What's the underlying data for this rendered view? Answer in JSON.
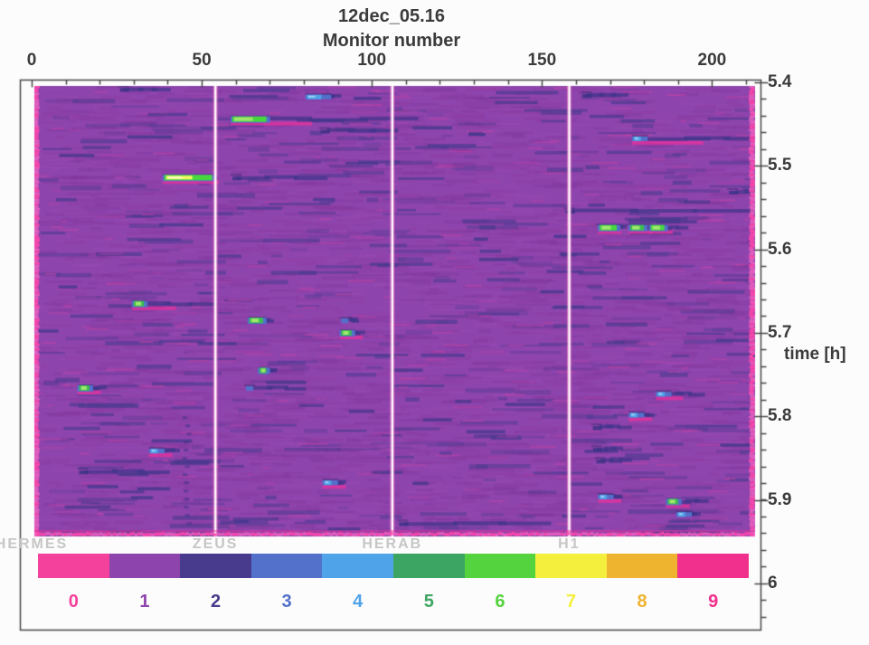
{
  "title": "12dec_05.16",
  "axes": {
    "x": {
      "label": "Monitor number",
      "major_ticks": [
        "0",
        "50",
        "100",
        "150",
        "200"
      ],
      "major_tick_values": [
        0,
        50,
        100,
        150,
        200
      ],
      "minor_tick_step": 10,
      "max_monitor": 213
    },
    "y": {
      "label": "time [h]",
      "major_ticks": [
        "5.4",
        "5.5",
        "5.6",
        "5.7",
        "5.8",
        "5.9",
        "6"
      ],
      "major_tick_values": [
        5.4,
        5.5,
        5.6,
        5.7,
        5.8,
        5.9,
        6.0
      ],
      "minor_tick_step": 0.02,
      "minor_tick_extent": 6.04
    }
  },
  "sections": [
    {
      "name": "HERMES",
      "start_monitor": 0
    },
    {
      "name": "ZEUS",
      "start_monitor": 54
    },
    {
      "name": "HERAB",
      "start_monitor": 106
    },
    {
      "name": "H1",
      "start_monitor": 158
    }
  ],
  "colorbar": {
    "values": [
      "0",
      "1",
      "2",
      "3",
      "4",
      "5",
      "6",
      "7",
      "8",
      "9"
    ],
    "colors": [
      "#f4429c",
      "#8e44ad",
      "#483a8c",
      "#5371cb",
      "#4fa3e8",
      "#3da563",
      "#55d33f",
      "#f4ef3d",
      "#eeb32f",
      "#f0308c"
    ]
  },
  "chart_data": {
    "type": "heatmap",
    "title": "12dec_05.16",
    "xlabel": "Monitor number",
    "ylabel": "time [h]",
    "x_range": [
      0,
      213
    ],
    "y_range": [
      5.4,
      5.94
    ],
    "y_axis_extent": [
      5.4,
      6.0
    ],
    "background_level": 1,
    "color_scale": {
      "values": [
        0,
        1,
        2,
        3,
        4,
        5,
        6,
        7,
        8,
        9
      ],
      "colors": [
        "#f4429c",
        "#8e44ad",
        "#483a8c",
        "#5371cb",
        "#4fa3e8",
        "#3da563",
        "#55d33f",
        "#f4ef3d",
        "#eeb32f",
        "#f0308c"
      ]
    },
    "sections": [
      {
        "name": "HERMES",
        "start_monitor": 0
      },
      {
        "name": "ZEUS",
        "start_monitor": 54
      },
      {
        "name": "HERAB",
        "start_monitor": 106
      },
      {
        "name": "H1",
        "start_monitor": 158
      }
    ],
    "section_divider_monitors": [
      54,
      106,
      158
    ],
    "events": [
      {
        "monitor": 39,
        "time": 5.513,
        "span": 14,
        "peak_level": 7,
        "tail": 5,
        "underglow": true
      },
      {
        "monitor": 59,
        "time": 5.513,
        "span": 0,
        "peak_level": 2,
        "tail": 25,
        "underglow": false
      },
      {
        "monitor": 26,
        "time": 5.407,
        "span": 0,
        "peak_level": 2,
        "tail": 12,
        "underglow": false
      },
      {
        "monitor": 59,
        "time": 5.443,
        "span": 10,
        "peak_level": 6,
        "tail": 47,
        "underglow": true
      },
      {
        "monitor": 81,
        "time": 5.416,
        "span": 6,
        "peak_level": 4,
        "tail": 4,
        "underglow": false
      },
      {
        "monitor": 85,
        "time": 5.457,
        "span": 0,
        "peak_level": 2,
        "tail": 20,
        "underglow": false
      },
      {
        "monitor": 162,
        "time": 5.414,
        "span": 0,
        "peak_level": 2,
        "tail": 10,
        "underglow": false
      },
      {
        "monitor": 177,
        "time": 5.466,
        "span": 3,
        "peak_level": 4,
        "tail": 36,
        "underglow": true
      },
      {
        "monitor": 157,
        "time": 5.553,
        "span": 0,
        "peak_level": 2,
        "tail": 54,
        "underglow": false
      },
      {
        "monitor": 167,
        "time": 5.573,
        "span": 5,
        "peak_level": 6,
        "tail": 3,
        "underglow": true
      },
      {
        "monitor": 176,
        "time": 5.573,
        "span": 4,
        "peak_level": 5,
        "tail": 2,
        "underglow": true
      },
      {
        "monitor": 182,
        "time": 5.573,
        "span": 4,
        "peak_level": 6,
        "tail": 6,
        "underglow": true
      },
      {
        "monitor": 30,
        "time": 5.664,
        "span": 3,
        "peak_level": 5,
        "tail": 20,
        "underglow": true
      },
      {
        "monitor": 64,
        "time": 5.684,
        "span": 4,
        "peak_level": 5,
        "tail": 3,
        "underglow": false
      },
      {
        "monitor": 91,
        "time": 5.684,
        "span": 2,
        "peak_level": 3,
        "tail": 2,
        "underglow": false
      },
      {
        "monitor": 91,
        "time": 5.699,
        "span": 3,
        "peak_level": 5,
        "tail": 3,
        "underglow": true
      },
      {
        "monitor": 67,
        "time": 5.744,
        "span": 2,
        "peak_level": 5,
        "tail": 2,
        "underglow": false
      },
      {
        "monitor": 14,
        "time": 5.765,
        "span": 3,
        "peak_level": 5,
        "tail": 4,
        "underglow": true
      },
      {
        "monitor": 63,
        "time": 5.765,
        "span": 0,
        "peak_level": 3,
        "tail": 14,
        "underglow": false
      },
      {
        "monitor": 184,
        "time": 5.772,
        "span": 3,
        "peak_level": 4,
        "tail": 10,
        "underglow": true
      },
      {
        "monitor": 176,
        "time": 5.797,
        "span": 3,
        "peak_level": 4,
        "tail": 3,
        "underglow": true
      },
      {
        "monitor": 165,
        "time": 5.812,
        "span": 0,
        "peak_level": 2,
        "tail": 8,
        "underglow": false
      },
      {
        "monitor": 35,
        "time": 5.84,
        "span": 3,
        "peak_level": 4,
        "tail": 5,
        "underglow": true
      },
      {
        "monitor": 165,
        "time": 5.838,
        "span": 0,
        "peak_level": 2,
        "tail": 6,
        "underglow": false
      },
      {
        "monitor": 14,
        "time": 5.865,
        "span": 0,
        "peak_level": 2,
        "tail": 24,
        "underglow": false
      },
      {
        "monitor": 166,
        "time": 5.852,
        "span": 0,
        "peak_level": 2,
        "tail": 7,
        "underglow": false
      },
      {
        "monitor": 205,
        "time": 5.53,
        "span": 0,
        "peak_level": 2,
        "tail": 8,
        "underglow": false
      },
      {
        "monitor": 86,
        "time": 5.878,
        "span": 3,
        "peak_level": 4,
        "tail": 3,
        "underglow": true
      },
      {
        "monitor": 167,
        "time": 5.895,
        "span": 3,
        "peak_level": 4,
        "tail": 3,
        "underglow": true
      },
      {
        "monitor": 187,
        "time": 5.901,
        "span": 3,
        "peak_level": 5,
        "tail": 8,
        "underglow": true
      },
      {
        "monitor": 190,
        "time": 5.916,
        "span": 3,
        "peak_level": 4,
        "tail": 3,
        "underglow": false
      },
      {
        "monitor": 108,
        "time": 5.927,
        "span": 0,
        "peak_level": 2,
        "tail": 42,
        "underglow": false
      }
    ],
    "vertical_anomaly": {
      "monitor": 45,
      "time_start": 5.8,
      "time_end": 5.93
    }
  }
}
